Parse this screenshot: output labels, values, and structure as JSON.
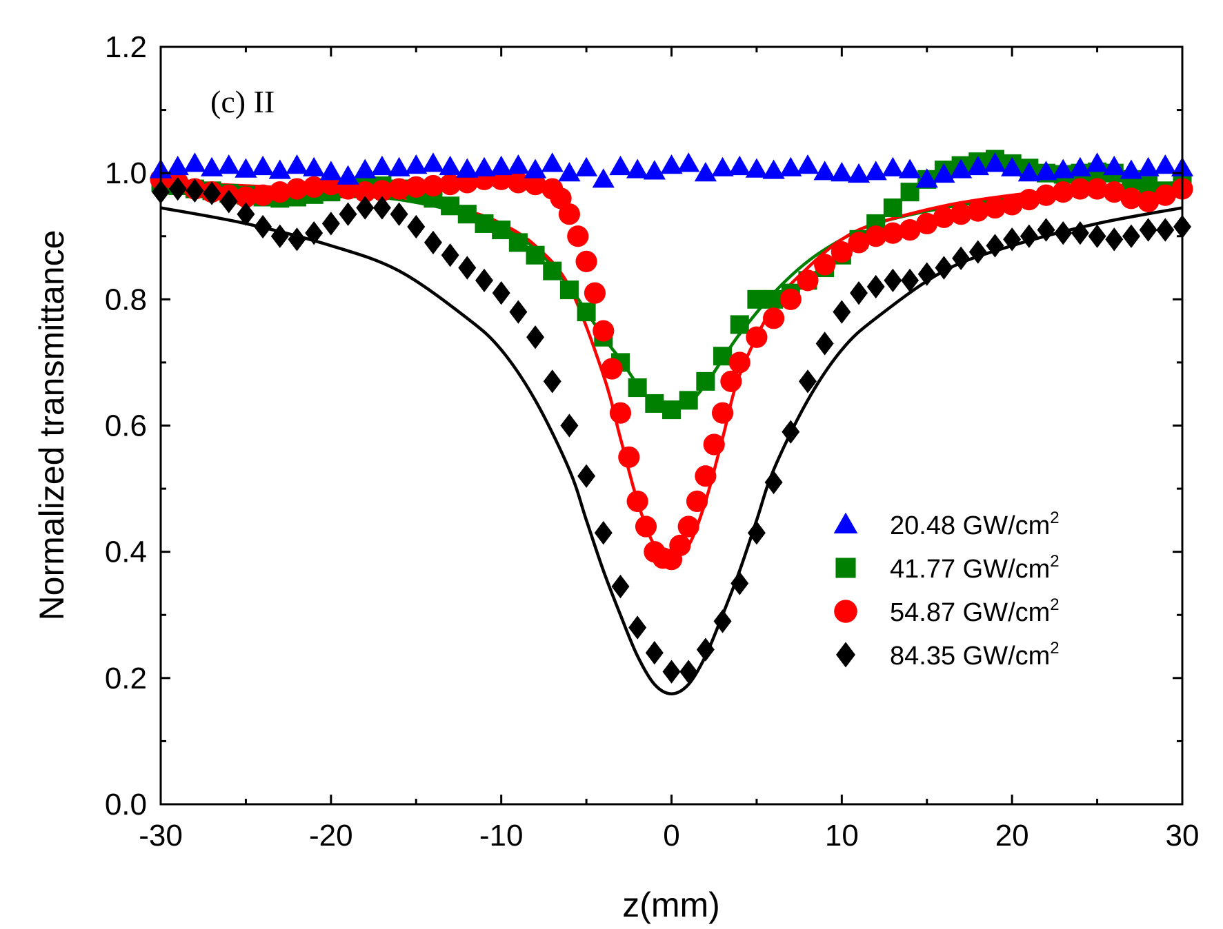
{
  "chart_data": {
    "type": "scatter",
    "title": "",
    "annotation": "(c) II",
    "xlabel": "z(mm)",
    "ylabel": "Normalized transmittance",
    "xlim": [
      -30,
      30
    ],
    "ylim": [
      0.0,
      1.2
    ],
    "xticks": [
      -30,
      -20,
      -10,
      0,
      10,
      20,
      30
    ],
    "xtick_labels": [
      "-30",
      "-20",
      "-10",
      "0",
      "10",
      "20",
      "30"
    ],
    "yticks": [
      0.0,
      0.2,
      0.4,
      0.6,
      0.8,
      1.0,
      1.2
    ],
    "ytick_labels": [
      "0.0",
      "0.2",
      "0.4",
      "0.6",
      "0.8",
      "1.0",
      "1.2"
    ],
    "grid": false,
    "legend_position": "lower-right",
    "series": [
      {
        "name": "20.48 GW/cm",
        "name_sup": "2",
        "marker": "triangle",
        "color": "#0000ff",
        "x": [
          -30,
          -29,
          -28,
          -27,
          -26,
          -25,
          -24,
          -23,
          -22,
          -21,
          -20,
          -19,
          -18,
          -17,
          -16,
          -15,
          -14,
          -13,
          -12,
          -11,
          -10,
          -9,
          -8,
          -7,
          -6,
          -5,
          -4,
          -3,
          -2,
          -1,
          0,
          1,
          2,
          3,
          4,
          5,
          6,
          7,
          8,
          9,
          10,
          11,
          12,
          13,
          14,
          15,
          16,
          17,
          18,
          19,
          20,
          21,
          22,
          23,
          24,
          25,
          26,
          27,
          28,
          29,
          30
        ],
        "y": [
          1.005,
          1.01,
          1.015,
          1.008,
          1.012,
          1.006,
          1.01,
          1.004,
          1.012,
          1.008,
          1.002,
          0.995,
          1.005,
          1.01,
          1.008,
          1.012,
          1.015,
          1.01,
          1.006,
          1.008,
          1.01,
          1.012,
          1.005,
          1.015,
          1.0,
          1.008,
          0.99,
          1.01,
          1.005,
          1.003,
          1.012,
          1.015,
          1.0,
          1.008,
          1.01,
          1.006,
          1.004,
          1.008,
          1.012,
          1.002,
          1.0,
          0.998,
          1.002,
          1.008,
          1.005,
          0.99,
          0.998,
          1.005,
          1.01,
          1.015,
          1.008,
          1.0,
          1.002,
          1.005,
          1.008,
          1.015,
          1.01,
          1.004,
          1.008,
          1.012,
          1.008
        ]
      },
      {
        "name": "41.77 GW/cm",
        "name_sup": "2",
        "marker": "square",
        "color": "#008000",
        "x": [
          -30,
          -29,
          -28,
          -27,
          -26,
          -25,
          -24,
          -23,
          -22,
          -21,
          -20,
          -19,
          -18,
          -17,
          -16,
          -15,
          -14,
          -13,
          -12,
          -11,
          -10,
          -9,
          -8,
          -7,
          -6,
          -5,
          -4,
          -3,
          -2,
          -1,
          0,
          1,
          2,
          3,
          4,
          5,
          6,
          7,
          8,
          9,
          10,
          11,
          12,
          13,
          14,
          15,
          16,
          17,
          18,
          19,
          20,
          21,
          22,
          23,
          24,
          25,
          26,
          27,
          28,
          29,
          30
        ],
        "y": [
          0.985,
          0.98,
          0.975,
          0.972,
          0.968,
          0.965,
          0.962,
          0.96,
          0.962,
          0.966,
          0.97,
          0.975,
          0.978,
          0.98,
          0.975,
          0.968,
          0.96,
          0.948,
          0.935,
          0.92,
          0.91,
          0.89,
          0.87,
          0.845,
          0.815,
          0.78,
          0.74,
          0.7,
          0.66,
          0.635,
          0.625,
          0.64,
          0.67,
          0.71,
          0.76,
          0.8,
          0.8,
          0.81,
          0.83,
          0.85,
          0.87,
          0.895,
          0.92,
          0.945,
          0.97,
          0.99,
          1.005,
          1.012,
          1.018,
          1.022,
          1.015,
          1.008,
          1.0,
          0.998,
          1.0,
          1.002,
          1.0,
          0.99,
          0.98,
          0.972,
          0.985
        ]
      },
      {
        "name": "54.87 GW/cm",
        "name_sup": "2",
        "marker": "circle",
        "color": "#ff0000",
        "x": [
          -30,
          -29,
          -28,
          -27,
          -26,
          -25,
          -24,
          -23,
          -22,
          -21,
          -20,
          -19,
          -18,
          -17,
          -16,
          -15,
          -14,
          -13,
          -12,
          -11,
          -10,
          -9,
          -8,
          -7,
          -6.5,
          -6,
          -5.5,
          -5,
          -4.5,
          -4,
          -3.5,
          -3,
          -2.5,
          -2,
          -1.5,
          -1,
          -0.5,
          0,
          0.5,
          1,
          1.5,
          2,
          2.5,
          3,
          3.5,
          4,
          5,
          6,
          7,
          8,
          9,
          10,
          11,
          12,
          13,
          14,
          15,
          16,
          17,
          18,
          19,
          20,
          21,
          22,
          23,
          24,
          25,
          26,
          27,
          28,
          29,
          30
        ],
        "y": [
          0.99,
          0.985,
          0.975,
          0.97,
          0.965,
          0.962,
          0.965,
          0.97,
          0.975,
          0.978,
          0.982,
          0.975,
          0.97,
          0.972,
          0.975,
          0.978,
          0.98,
          0.982,
          0.985,
          0.99,
          0.99,
          0.985,
          0.982,
          0.975,
          0.96,
          0.935,
          0.9,
          0.86,
          0.81,
          0.75,
          0.69,
          0.62,
          0.55,
          0.48,
          0.44,
          0.4,
          0.39,
          0.388,
          0.41,
          0.44,
          0.48,
          0.52,
          0.57,
          0.62,
          0.67,
          0.7,
          0.74,
          0.77,
          0.8,
          0.83,
          0.855,
          0.875,
          0.89,
          0.9,
          0.905,
          0.91,
          0.92,
          0.93,
          0.935,
          0.94,
          0.945,
          0.95,
          0.958,
          0.965,
          0.97,
          0.975,
          0.975,
          0.97,
          0.96,
          0.955,
          0.965,
          0.975
        ]
      },
      {
        "name": "84.35 GW/cm",
        "name_sup": "2",
        "marker": "diamond",
        "color": "#000000",
        "x": [
          -30,
          -29,
          -28,
          -27,
          -26,
          -25,
          -24,
          -23,
          -22,
          -21,
          -20,
          -19,
          -18,
          -17,
          -16,
          -15,
          -14,
          -13,
          -12,
          -11,
          -10,
          -9,
          -8,
          -7,
          -6,
          -5,
          -4,
          -3,
          -2,
          -1,
          0,
          1,
          2,
          3,
          4,
          5,
          6,
          7,
          8,
          9,
          10,
          11,
          12,
          13,
          14,
          15,
          16,
          17,
          18,
          19,
          20,
          21,
          22,
          23,
          24,
          25,
          26,
          27,
          28,
          29,
          30
        ],
        "y": [
          0.97,
          0.975,
          0.972,
          0.968,
          0.955,
          0.935,
          0.915,
          0.9,
          0.895,
          0.905,
          0.92,
          0.935,
          0.945,
          0.945,
          0.935,
          0.915,
          0.89,
          0.87,
          0.85,
          0.83,
          0.81,
          0.78,
          0.74,
          0.67,
          0.6,
          0.52,
          0.43,
          0.345,
          0.28,
          0.24,
          0.21,
          0.21,
          0.245,
          0.29,
          0.35,
          0.43,
          0.51,
          0.59,
          0.67,
          0.73,
          0.78,
          0.81,
          0.82,
          0.83,
          0.83,
          0.84,
          0.85,
          0.865,
          0.875,
          0.885,
          0.895,
          0.9,
          0.91,
          0.905,
          0.905,
          0.9,
          0.895,
          0.9,
          0.91,
          0.91,
          0.915
        ]
      }
    ],
    "fit_curves": [
      {
        "name": "fit 41.77 GW/cm2",
        "color": "#008000",
        "baseline": 0.975,
        "x": [
          -30,
          -25,
          -20,
          -16,
          -12,
          -10,
          -8,
          -6,
          -4,
          -3,
          -2,
          -1,
          0,
          1,
          2,
          3,
          4,
          6,
          8,
          10,
          12,
          16,
          20,
          25,
          30
        ],
        "y": [
          0.975,
          0.972,
          0.966,
          0.958,
          0.935,
          0.915,
          0.88,
          0.82,
          0.74,
          0.705,
          0.665,
          0.635,
          0.625,
          0.635,
          0.665,
          0.705,
          0.745,
          0.81,
          0.86,
          0.895,
          0.92,
          0.945,
          0.96,
          0.972,
          0.978
        ]
      },
      {
        "name": "fit 54.87 GW/cm2",
        "color": "#ff0000",
        "x": [
          -30,
          -25,
          -20,
          -16,
          -12,
          -10,
          -8,
          -6,
          -4,
          -3,
          -2,
          -1,
          0,
          1,
          2,
          3,
          4,
          6,
          8,
          10,
          12,
          16,
          20,
          25,
          30
        ],
        "y": [
          0.985,
          0.98,
          0.972,
          0.962,
          0.94,
          0.92,
          0.885,
          0.82,
          0.68,
          0.58,
          0.48,
          0.41,
          0.39,
          0.41,
          0.48,
          0.58,
          0.68,
          0.79,
          0.85,
          0.895,
          0.92,
          0.948,
          0.965,
          0.978,
          0.985
        ]
      },
      {
        "name": "fit 84.35 GW/cm2",
        "color": "#000000",
        "x": [
          -30,
          -25,
          -20,
          -16,
          -12,
          -10,
          -8,
          -6,
          -5,
          -4,
          -3,
          -2,
          -1,
          0,
          1,
          2,
          3,
          4,
          5,
          6,
          8,
          10,
          12,
          16,
          20,
          25,
          30
        ],
        "y": [
          0.945,
          0.92,
          0.885,
          0.845,
          0.77,
          0.72,
          0.64,
          0.53,
          0.45,
          0.37,
          0.3,
          0.235,
          0.19,
          0.175,
          0.19,
          0.235,
          0.3,
          0.37,
          0.45,
          0.53,
          0.64,
          0.72,
          0.77,
          0.845,
          0.885,
          0.92,
          0.945
        ]
      }
    ]
  }
}
